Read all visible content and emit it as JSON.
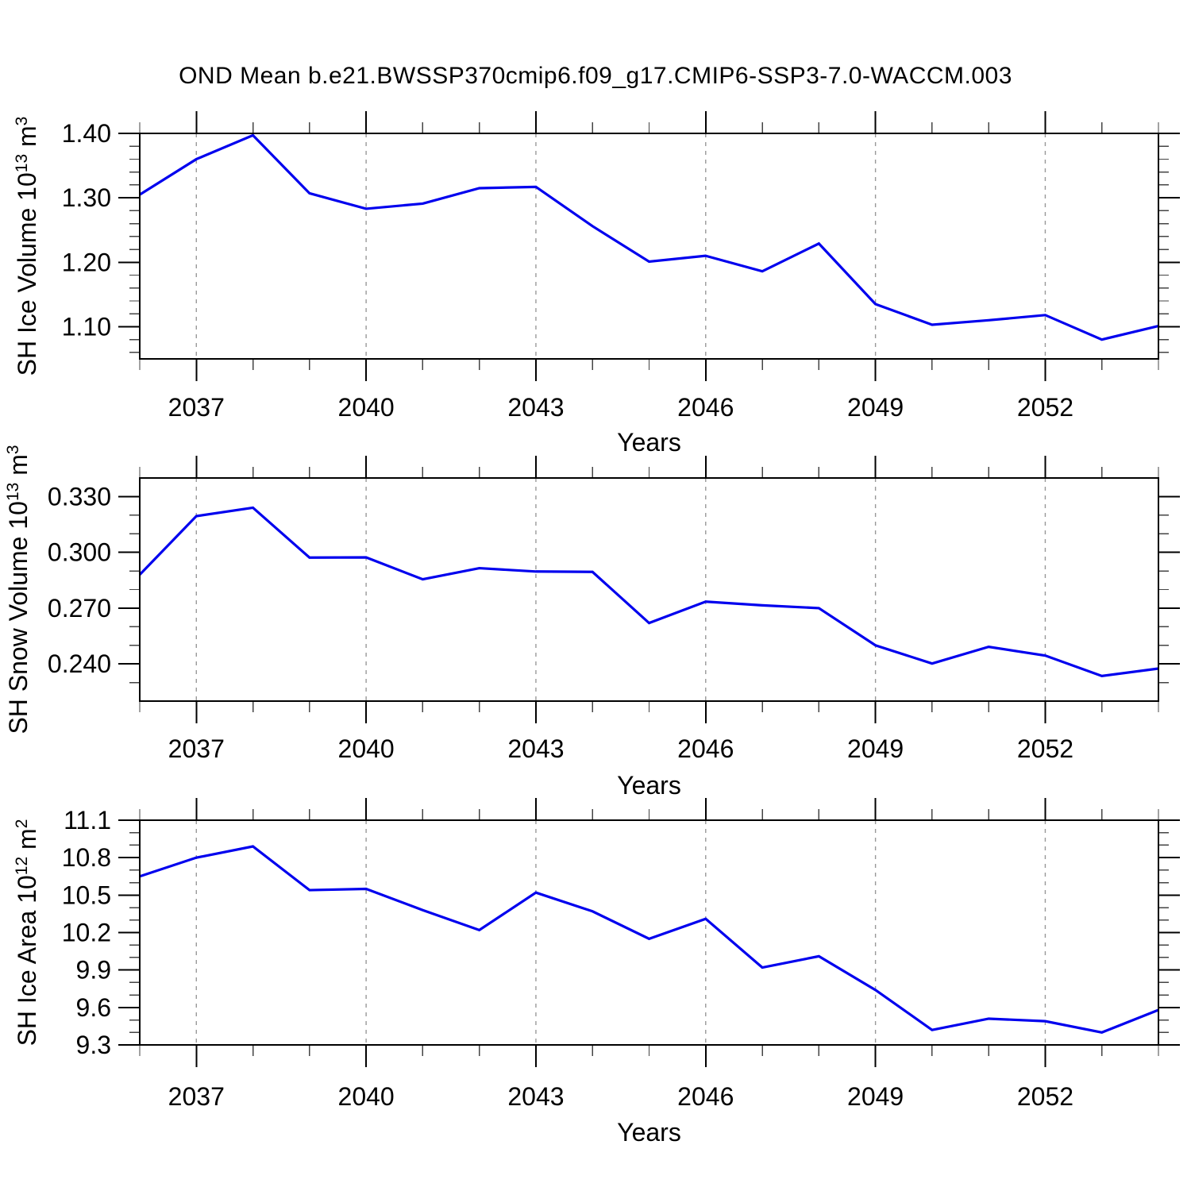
{
  "title": "OND Mean b.e21.BWSSP370cmip6.f09_g17.CMIP6-SSP3-7.0-WACCM.003",
  "colors": {
    "line": "#0000ee",
    "axis": "#000000",
    "grid": "#999999",
    "background": "#ffffff",
    "text": "#000000"
  },
  "x_axis": {
    "label": "Years",
    "xlim": [
      2036,
      2054
    ],
    "years": [
      2036,
      2037,
      2038,
      2039,
      2040,
      2041,
      2042,
      2043,
      2044,
      2045,
      2046,
      2047,
      2048,
      2049,
      2050,
      2051,
      2052,
      2053,
      2054
    ],
    "major_ticks": [
      2037,
      2040,
      2043,
      2046,
      2049,
      2052
    ],
    "tick_labels": [
      "2037",
      "2040",
      "2043",
      "2046",
      "2049",
      "2052"
    ]
  },
  "chart_data": [
    {
      "type": "line",
      "name": "sh-ice-volume",
      "ylabel_text": "SH Ice Volume 10^13 m^3",
      "ylabel_parts": [
        "SH Ice Volume 10",
        "13",
        " m",
        "3"
      ],
      "xlabel": "Years",
      "x": [
        2036,
        2037,
        2038,
        2039,
        2040,
        2041,
        2042,
        2043,
        2044,
        2045,
        2046,
        2047,
        2048,
        2049,
        2050,
        2051,
        2052,
        2053,
        2054
      ],
      "values": [
        1.305,
        1.36,
        1.397,
        1.307,
        1.283,
        1.291,
        1.315,
        1.317,
        1.256,
        1.201,
        1.21,
        1.186,
        1.229,
        1.135,
        1.103,
        1.11,
        1.118,
        1.08,
        1.101
      ],
      "ylim": [
        1.05,
        1.4
      ],
      "yticks_major": [
        1.1,
        1.2,
        1.3,
        1.4
      ],
      "ytick_labels": [
        "1.10",
        "1.20",
        "1.30",
        "1.40"
      ],
      "ytick_minor_step": 0.02,
      "grid": "vertical-dashed-at-major-x",
      "legend": "none"
    },
    {
      "type": "line",
      "name": "sh-snow-volume",
      "ylabel_text": "SH Snow Volume 10^13 m^3",
      "ylabel_parts": [
        "SH Snow Volume 10",
        "13",
        " m",
        "3"
      ],
      "xlabel": "Years",
      "x": [
        2036,
        2037,
        2038,
        2039,
        2040,
        2041,
        2042,
        2043,
        2044,
        2045,
        2046,
        2047,
        2048,
        2049,
        2050,
        2051,
        2052,
        2053,
        2054
      ],
      "values": [
        0.288,
        0.3195,
        0.324,
        0.2972,
        0.2973,
        0.2855,
        0.2915,
        0.2897,
        0.2895,
        0.262,
        0.2735,
        0.2715,
        0.27,
        0.25,
        0.2402,
        0.2492,
        0.2445,
        0.2335,
        0.2375
      ],
      "ylim": [
        0.22,
        0.34
      ],
      "yticks_major": [
        0.24,
        0.27,
        0.3,
        0.33
      ],
      "ytick_labels": [
        "0.240",
        "0.270",
        "0.300",
        "0.330"
      ],
      "ytick_minor_step": 0.01,
      "grid": "vertical-dashed-at-major-x",
      "legend": "none"
    },
    {
      "type": "line",
      "name": "sh-ice-area",
      "ylabel_text": "SH Ice Area 10^12 m^2",
      "ylabel_parts": [
        "SH Ice Area 10",
        "12",
        " m",
        "2"
      ],
      "xlabel": "Years",
      "x": [
        2036,
        2037,
        2038,
        2039,
        2040,
        2041,
        2042,
        2043,
        2044,
        2045,
        2046,
        2047,
        2048,
        2049,
        2050,
        2051,
        2052,
        2053,
        2054
      ],
      "values": [
        10.65,
        10.8,
        10.89,
        10.54,
        10.55,
        10.38,
        10.22,
        10.52,
        10.37,
        10.15,
        10.31,
        9.92,
        10.01,
        9.74,
        9.42,
        9.51,
        9.49,
        9.4,
        9.58
      ],
      "ylim": [
        9.3,
        11.1
      ],
      "yticks_major": [
        9.3,
        9.6,
        9.9,
        10.2,
        10.5,
        10.8,
        11.1
      ],
      "ytick_labels": [
        "9.3",
        "9.6",
        "9.9",
        "10.2",
        "10.5",
        "10.8",
        "11.1"
      ],
      "ytick_minor_step": 0.1,
      "grid": "vertical-dashed-at-major-x",
      "legend": "none"
    }
  ]
}
